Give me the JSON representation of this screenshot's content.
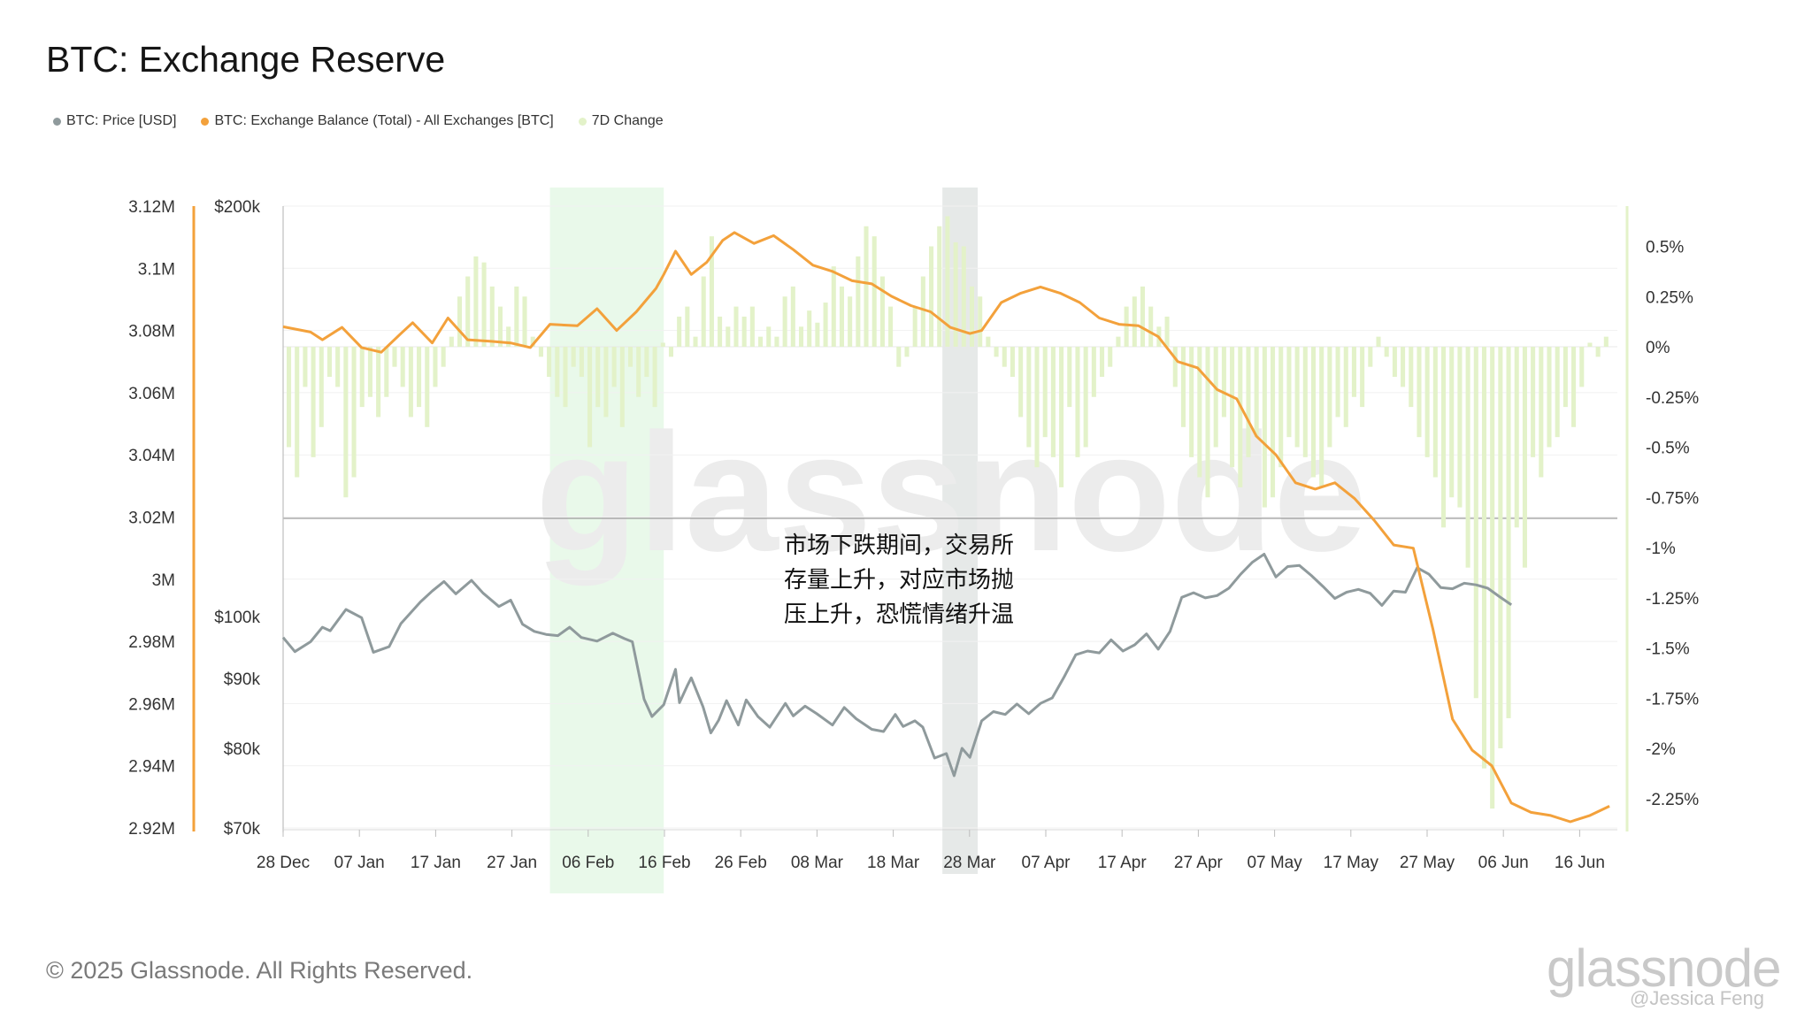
{
  "title": "BTC: Exchange Reserve",
  "legend": [
    {
      "label": "BTC: Price [USD]",
      "color": "#8f9a9c"
    },
    {
      "label": "BTC: Exchange Balance (Total) - All Exchanges [BTC]",
      "color": "#f3a13b"
    },
    {
      "label": "7D Change",
      "color": "#e3f2c9"
    }
  ],
  "annotation": {
    "lines": [
      "市场下跌期间，交易所",
      "存量上升，对应市场抛",
      "压上升，恐慌情绪升温"
    ]
  },
  "footer": {
    "copyright": "© 2025 Glassnode. All Rights Reserved.",
    "brand": "glassnode",
    "credit": "@Jessica Feng"
  },
  "watermark": "glassnode",
  "chart_data": {
    "type": "line",
    "x_ticks": [
      "28 Dec",
      "07 Jan",
      "17 Jan",
      "27 Jan",
      "06 Feb",
      "16 Feb",
      "26 Feb",
      "08 Mar",
      "18 Mar",
      "28 Mar",
      "07 Apr",
      "17 Apr",
      "27 Apr",
      "07 May",
      "17 May",
      "27 May",
      "06 Jun",
      "16 Jun"
    ],
    "y_axis_balance": {
      "ticks": [
        "3.12M",
        "3.1M",
        "3.08M",
        "3.06M",
        "3.04M",
        "3.02M",
        "3M",
        "2.98M",
        "2.96M",
        "2.94M",
        "2.92M"
      ],
      "range": [
        2920000,
        3120000
      ]
    },
    "y_axis_price": {
      "ticks": [
        "$200k",
        "$100k",
        "$90k",
        "$80k",
        "$70k"
      ],
      "scale": "log",
      "range": [
        70000,
        200000
      ]
    },
    "y_axis_change": {
      "ticks": [
        "0.5%",
        "0.25%",
        "0%",
        "-0.25%",
        "-0.5%",
        "-0.75%",
        "-1%",
        "-1.25%",
        "-1.5%",
        "-1.75%",
        "-2%",
        "-2.25%"
      ],
      "range": [
        -2.4,
        0.7
      ]
    },
    "highlight_regions": [
      {
        "from_day": 68,
        "to_day": 97,
        "color": "#e9f9ea"
      },
      {
        "from_day": 168,
        "to_day": 177,
        "color": "#e6e9e8"
      }
    ],
    "series": [
      {
        "name": "BTC: Exchange Balance (Total) - All Exchanges [BTC]",
        "axis": "balance",
        "color": "#f3a13b",
        "points": [
          [
            0,
            3.0812
          ],
          [
            7,
            3.0795
          ],
          [
            10,
            3.077
          ],
          [
            15,
            3.081
          ],
          [
            20,
            3.0745
          ],
          [
            25,
            3.073
          ],
          [
            30,
            3.079
          ],
          [
            33,
            3.0825
          ],
          [
            38,
            3.076
          ],
          [
            42,
            3.084
          ],
          [
            47,
            3.077
          ],
          [
            53,
            3.0765
          ],
          [
            58,
            3.076
          ],
          [
            63,
            3.0745
          ],
          [
            68,
            3.082
          ],
          [
            75,
            3.0815
          ],
          [
            80,
            3.087
          ],
          [
            85,
            3.08
          ],
          [
            90,
            3.086
          ],
          [
            95,
            3.0935
          ],
          [
            97,
            3.098
          ],
          [
            100,
            3.1055
          ],
          [
            104,
            3.098
          ],
          [
            108,
            3.102
          ],
          [
            112,
            3.109
          ],
          [
            115,
            3.1115
          ],
          [
            120,
            3.108
          ],
          [
            125,
            3.1105
          ],
          [
            130,
            3.106
          ],
          [
            135,
            3.101
          ],
          [
            140,
            3.099
          ],
          [
            145,
            3.096
          ],
          [
            150,
            3.095
          ],
          [
            155,
            3.091
          ],
          [
            160,
            3.088
          ],
          [
            165,
            3.086
          ],
          [
            170,
            3.081
          ],
          [
            175,
            3.079
          ],
          [
            178,
            3.08
          ],
          [
            183,
            3.089
          ],
          [
            188,
            3.092
          ],
          [
            193,
            3.094
          ],
          [
            198,
            3.092
          ],
          [
            203,
            3.089
          ],
          [
            208,
            3.084
          ],
          [
            213,
            3.082
          ],
          [
            218,
            3.0815
          ],
          [
            223,
            3.078
          ],
          [
            228,
            3.07
          ],
          [
            233,
            3.068
          ],
          [
            238,
            3.061
          ],
          [
            243,
            3.058
          ],
          [
            248,
            3.046
          ],
          [
            253,
            3.04
          ],
          [
            258,
            3.031
          ],
          [
            263,
            3.029
          ],
          [
            268,
            3.031
          ],
          [
            273,
            3.026
          ],
          [
            278,
            3.019
          ],
          [
            283,
            3.011
          ],
          [
            288,
            3.01
          ],
          [
            293,
            2.984
          ],
          [
            298,
            2.955
          ],
          [
            303,
            2.945
          ],
          [
            308,
            2.94
          ],
          [
            313,
            2.928
          ],
          [
            318,
            2.925
          ],
          [
            323,
            2.924
          ],
          [
            328,
            2.922
          ],
          [
            333,
            2.924
          ],
          [
            338,
            2.927
          ]
        ]
      },
      {
        "name": "BTC: Price [USD]",
        "axis": "price",
        "color": "#8f9a9c",
        "points": [
          [
            0,
            96500
          ],
          [
            3,
            94200
          ],
          [
            7,
            95800
          ],
          [
            10,
            98200
          ],
          [
            12,
            97600
          ],
          [
            16,
            101200
          ],
          [
            20,
            99800
          ],
          [
            23,
            94100
          ],
          [
            27,
            95000
          ],
          [
            30,
            98800
          ],
          [
            35,
            102500
          ],
          [
            38,
            104400
          ],
          [
            41,
            106100
          ],
          [
            44,
            103900
          ],
          [
            48,
            106300
          ],
          [
            51,
            104000
          ],
          [
            55,
            101700
          ],
          [
            58,
            102800
          ],
          [
            61,
            98700
          ],
          [
            64,
            97500
          ],
          [
            67,
            97000
          ],
          [
            70,
            96800
          ],
          [
            73,
            98200
          ],
          [
            76,
            96500
          ],
          [
            80,
            95900
          ],
          [
            84,
            97200
          ],
          [
            87,
            96300
          ],
          [
            89,
            95800
          ],
          [
            92,
            86900
          ],
          [
            94,
            84400
          ],
          [
            97,
            86100
          ],
          [
            100,
            91400
          ],
          [
            101,
            86400
          ],
          [
            103,
            88900
          ],
          [
            104,
            90100
          ],
          [
            107,
            85800
          ],
          [
            109,
            82100
          ],
          [
            111,
            83900
          ],
          [
            113,
            86700
          ],
          [
            116,
            83200
          ],
          [
            118,
            86800
          ],
          [
            121,
            84400
          ],
          [
            124,
            82900
          ],
          [
            128,
            86300
          ],
          [
            130,
            84500
          ],
          [
            133,
            85900
          ],
          [
            136,
            84800
          ],
          [
            140,
            83200
          ],
          [
            143,
            85700
          ],
          [
            146,
            84100
          ],
          [
            150,
            82600
          ],
          [
            153,
            82300
          ],
          [
            156,
            84700
          ],
          [
            158,
            83000
          ],
          [
            161,
            83800
          ],
          [
            163,
            82900
          ],
          [
            166,
            78700
          ],
          [
            169,
            79300
          ],
          [
            171,
            76400
          ],
          [
            173,
            80000
          ],
          [
            175,
            78800
          ],
          [
            178,
            83800
          ],
          [
            181,
            85100
          ],
          [
            184,
            84700
          ],
          [
            187,
            86200
          ],
          [
            190,
            84800
          ],
          [
            193,
            86300
          ],
          [
            196,
            87100
          ],
          [
            199,
            90200
          ],
          [
            202,
            93700
          ],
          [
            205,
            94300
          ],
          [
            208,
            94000
          ],
          [
            211,
            96100
          ],
          [
            214,
            94300
          ],
          [
            217,
            95300
          ],
          [
            220,
            97100
          ],
          [
            223,
            94600
          ],
          [
            226,
            97500
          ],
          [
            229,
            103300
          ],
          [
            232,
            104100
          ],
          [
            235,
            103200
          ],
          [
            238,
            103600
          ],
          [
            241,
            104900
          ],
          [
            244,
            107400
          ],
          [
            247,
            109600
          ],
          [
            250,
            111100
          ],
          [
            253,
            106900
          ],
          [
            256,
            108800
          ],
          [
            259,
            109000
          ],
          [
            262,
            107200
          ],
          [
            265,
            105200
          ],
          [
            268,
            103100
          ],
          [
            271,
            104200
          ],
          [
            274,
            104700
          ],
          [
            277,
            104000
          ],
          [
            280,
            101900
          ],
          [
            283,
            104400
          ],
          [
            286,
            104200
          ],
          [
            289,
            108600
          ],
          [
            292,
            107400
          ],
          [
            295,
            105000
          ],
          [
            298,
            104800
          ],
          [
            301,
            105800
          ],
          [
            304,
            105500
          ],
          [
            307,
            104900
          ],
          [
            310,
            103400
          ],
          [
            313,
            102000
          ]
        ]
      },
      {
        "name": "7D Change",
        "axis": "change",
        "type": "bar",
        "color": "#e3f2c9",
        "values": [
          -0.5,
          -0.65,
          -0.2,
          -0.55,
          -0.4,
          -0.15,
          -0.2,
          -0.75,
          -0.65,
          -0.3,
          -0.25,
          -0.35,
          -0.25,
          -0.1,
          -0.2,
          -0.35,
          -0.3,
          -0.4,
          -0.2,
          -0.1,
          0.05,
          0.25,
          0.35,
          0.45,
          0.42,
          0.3,
          0.2,
          0.1,
          0.3,
          0.25,
          0.05,
          -0.05,
          -0.15,
          -0.25,
          -0.3,
          -0.1,
          -0.15,
          -0.5,
          -0.3,
          -0.35,
          -0.2,
          -0.4,
          -0.1,
          -0.25,
          -0.15,
          -0.3,
          0.02,
          -0.05,
          0.15,
          0.2,
          0.05,
          0.35,
          0.55,
          0.15,
          0.1,
          0.2,
          0.15,
          0.2,
          0.05,
          0.1,
          0.05,
          0.25,
          0.3,
          0.1,
          0.18,
          0.12,
          0.22,
          0.4,
          0.3,
          0.25,
          0.45,
          0.6,
          0.55,
          0.35,
          0.2,
          -0.1,
          -0.05,
          0.2,
          0.35,
          0.5,
          0.6,
          0.65,
          0.52,
          0.5,
          0.3,
          0.25,
          0.05,
          -0.05,
          -0.1,
          -0.15,
          -0.35,
          -0.5,
          -0.6,
          -0.45,
          -0.55,
          -0.7,
          -0.3,
          -0.55,
          -0.5,
          -0.25,
          -0.15,
          -0.1,
          0.05,
          0.2,
          0.25,
          0.3,
          0.2,
          0.1,
          0.15,
          -0.2,
          -0.4,
          -0.55,
          -0.65,
          -0.75,
          -0.5,
          -0.35,
          -0.6,
          -0.7,
          -0.55,
          -0.45,
          -0.8,
          -0.75,
          -0.6,
          -0.45,
          -0.5,
          -0.55,
          -0.65,
          -0.7,
          -0.5,
          -0.35,
          -0.4,
          -0.25,
          -0.3,
          -0.1,
          0.05,
          -0.05,
          -0.15,
          -0.2,
          -0.3,
          -0.45,
          -0.55,
          -0.65,
          -0.9,
          -0.75,
          -0.8,
          -1.1,
          -1.75,
          -2.1,
          -2.3,
          -2.0,
          -1.85,
          -0.9,
          -1.1,
          -0.55,
          -0.65,
          -0.5,
          -0.45,
          -0.3,
          -0.4,
          -0.2,
          0.02,
          -0.05,
          0.05
        ]
      }
    ],
    "day_range": [
      0,
      340
    ]
  }
}
